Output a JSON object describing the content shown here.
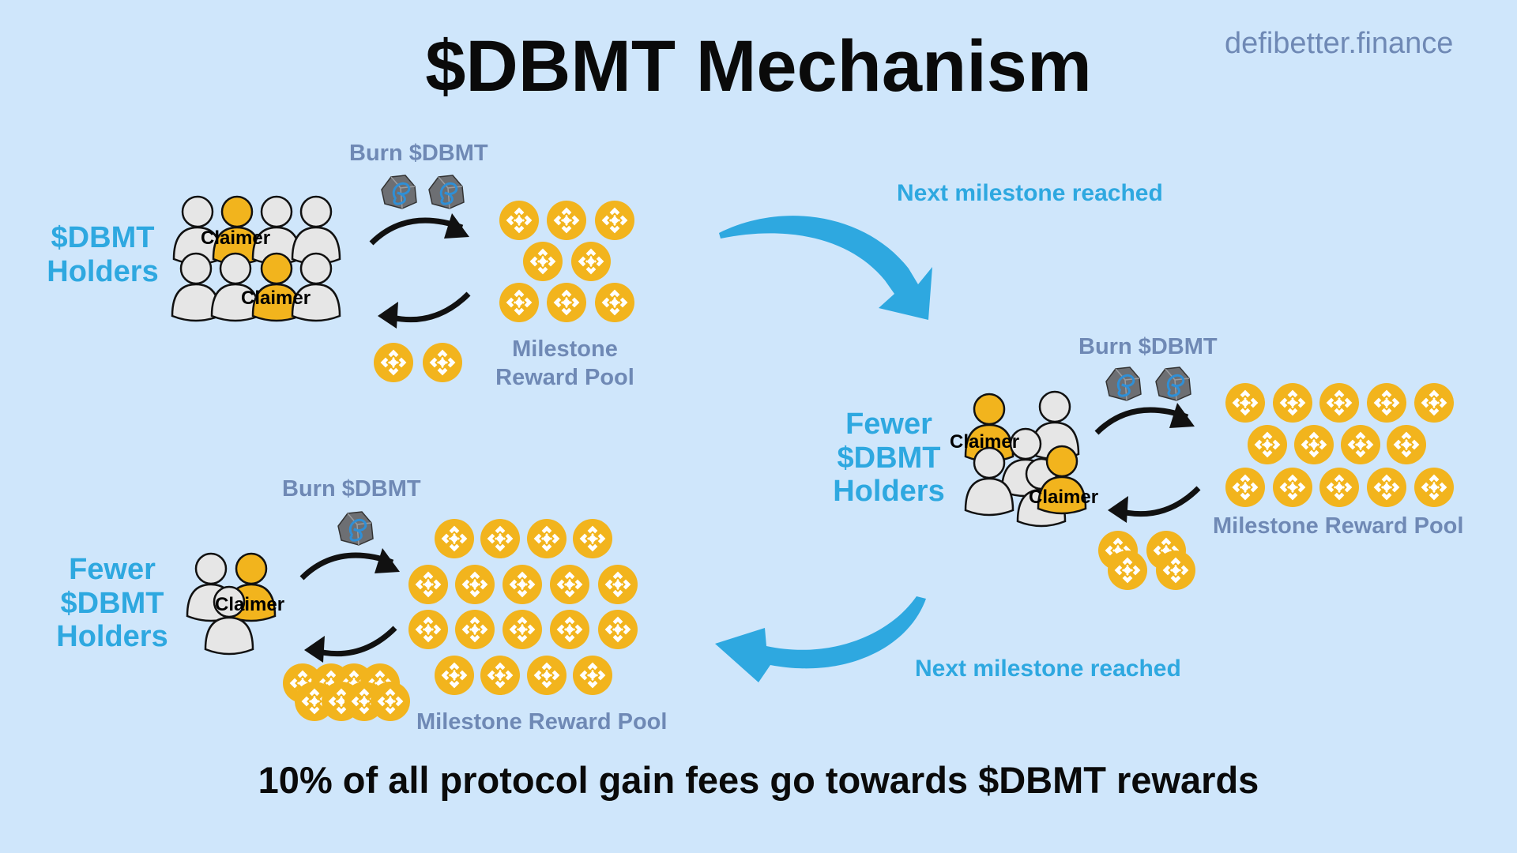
{
  "title": "$DBMT Mechanism",
  "site": "defibetter.finance",
  "footer": "10% of all protocol gain fees go towards $DBMT rewards",
  "arrow_label": "Next milestone reached",
  "colors": {
    "background": "#cfe6fb",
    "accent": "#2ea8e0",
    "label": "#6f89b5",
    "coin": "#f2b41d",
    "person": "#e8e8e8"
  },
  "stages": [
    {
      "holders_label": "$DBMT\nHolders",
      "burn_label": "Burn $DBMT",
      "pool_label": "Milestone\nReward Pool",
      "claimer_label": "Claimer"
    },
    {
      "holders_label": "Fewer\n$DBMT\nHolders",
      "burn_label": "Burn $DBMT",
      "pool_label": "Milestone Reward Pool",
      "claimer_label": "Claimer"
    },
    {
      "holders_label": "Fewer\n$DBMT\nHolders",
      "burn_label": "Burn $DBMT",
      "pool_label": "Milestone Reward Pool",
      "claimer_label": "Claimer"
    }
  ],
  "icons": {
    "coin": "bnb-coin-icon",
    "burn_token": "dbmt-rock-token-icon",
    "person": "person-icon"
  }
}
